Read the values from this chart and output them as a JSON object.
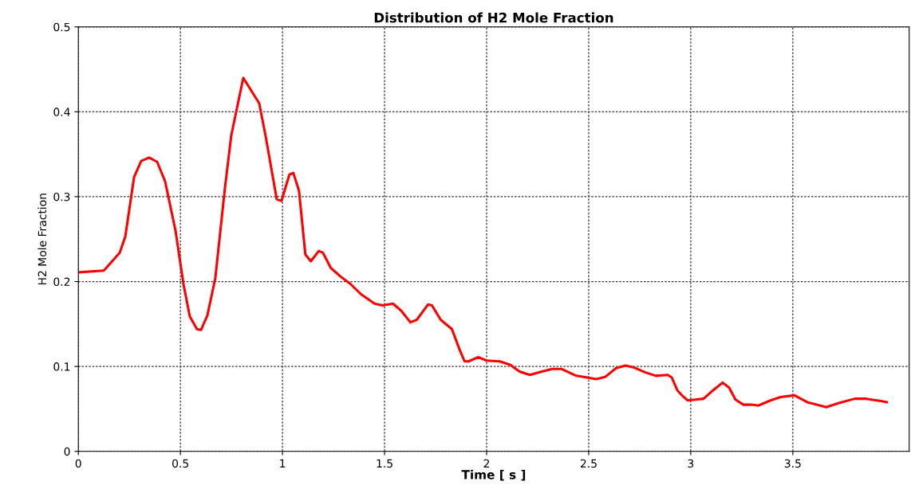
{
  "chart_data": {
    "type": "line",
    "title": "Distribution of H2 Mole Fraction",
    "xlabel": "Time [ s ]",
    "ylabel": "H2 Mole Fraction",
    "xlim": [
      0,
      4.07
    ],
    "ylim": [
      0,
      0.5
    ],
    "xticks": [
      0,
      0.5,
      1,
      1.5,
      2,
      2.5,
      3,
      3.5
    ],
    "yticks": [
      0,
      0.1,
      0.2,
      0.3,
      0.4,
      0.5
    ],
    "grid": true,
    "marker": "none",
    "line_style": "solid",
    "series": [
      {
        "color": "#ff0000",
        "x": [
          0.008,
          0.125,
          0.203,
          0.23,
          0.273,
          0.308,
          0.347,
          0.386,
          0.425,
          0.476,
          0.515,
          0.546,
          0.581,
          0.601,
          0.632,
          0.671,
          0.718,
          0.749,
          0.808,
          0.886,
          0.917,
          0.972,
          0.995,
          1.034,
          1.053,
          1.081,
          1.112,
          1.139,
          1.178,
          1.198,
          1.237,
          1.284,
          1.334,
          1.385,
          1.451,
          1.49,
          1.541,
          1.58,
          1.627,
          1.658,
          1.713,
          1.732,
          1.775,
          1.83,
          1.869,
          1.892,
          1.912,
          1.959,
          1.998,
          2.064,
          2.115,
          2.161,
          2.212,
          2.271,
          2.322,
          2.368,
          2.439,
          2.493,
          2.536,
          2.583,
          2.634,
          2.68,
          2.719,
          2.778,
          2.829,
          2.887,
          2.907,
          2.934,
          2.961,
          2.985,
          3.024,
          3.063,
          3.11,
          3.156,
          3.188,
          3.219,
          3.258,
          3.297,
          3.332,
          3.391,
          3.441,
          3.508,
          3.57,
          3.664,
          3.726,
          3.804,
          3.859,
          3.937,
          3.96
        ],
        "values": [
          0.211,
          0.213,
          0.234,
          0.253,
          0.323,
          0.342,
          0.346,
          0.341,
          0.318,
          0.26,
          0.197,
          0.159,
          0.144,
          0.143,
          0.16,
          0.204,
          0.31,
          0.372,
          0.44,
          0.41,
          0.372,
          0.297,
          0.295,
          0.326,
          0.328,
          0.307,
          0.232,
          0.224,
          0.236,
          0.234,
          0.216,
          0.206,
          0.197,
          0.185,
          0.174,
          0.172,
          0.174,
          0.166,
          0.152,
          0.155,
          0.173,
          0.172,
          0.155,
          0.144,
          0.119,
          0.106,
          0.106,
          0.111,
          0.107,
          0.106,
          0.102,
          0.094,
          0.09,
          0.094,
          0.097,
          0.097,
          0.089,
          0.087,
          0.085,
          0.088,
          0.098,
          0.101,
          0.099,
          0.093,
          0.089,
          0.09,
          0.087,
          0.072,
          0.065,
          0.06,
          0.061,
          0.062,
          0.072,
          0.081,
          0.075,
          0.061,
          0.055,
          0.055,
          0.054,
          0.06,
          0.064,
          0.066,
          0.058,
          0.052,
          0.057,
          0.062,
          0.062,
          0.059,
          0.058
        ]
      }
    ]
  }
}
